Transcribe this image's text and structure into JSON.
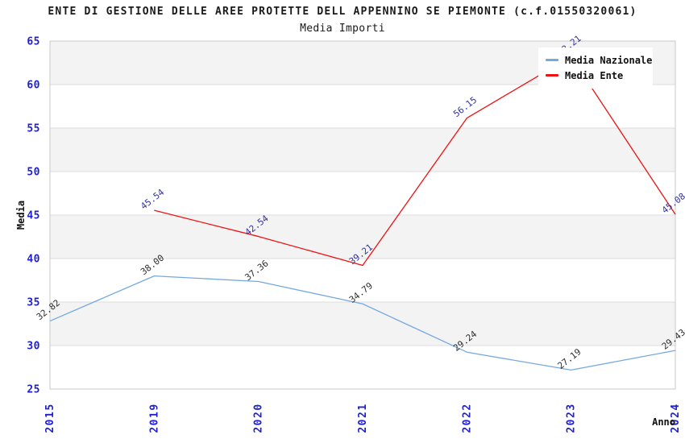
{
  "chart_data": {
    "type": "line",
    "title": "ENTE DI GESTIONE DELLE AREE PROTETTE DELL APPENNINO SE PIEMONTE (c.f.01550320061)",
    "subtitle": "Media Importi",
    "xlabel": "Anno",
    "ylabel": "Media",
    "ylim": [
      25,
      65
    ],
    "yticks": [
      25,
      30,
      35,
      40,
      45,
      50,
      55,
      60,
      65
    ],
    "categories": [
      "2015",
      "2019",
      "2020",
      "2021",
      "2022",
      "2023",
      "2024"
    ],
    "grid": "horizontal gridlines every 5 units with alternating light-gray bands",
    "legend_position": "top-right inside plot",
    "value_label_decimals": 2,
    "series": [
      {
        "name": "Media Nazionale",
        "color": "#74A9E0",
        "label_color": "#2E2E2E",
        "values": [
          32.82,
          38.0,
          37.36,
          34.79,
          29.24,
          27.19,
          29.43
        ]
      },
      {
        "name": "Media Ente",
        "color": "#EE1111",
        "label_color": "#3333A2",
        "values": [
          null,
          45.54,
          42.54,
          39.21,
          56.15,
          63.21,
          45.08
        ]
      }
    ]
  },
  "colors": {
    "tick_label": "#2020CC",
    "axis_label": "#111111",
    "band": "#F3F3F3",
    "gridline": "#DEDEDE",
    "plot_border": "#C8C8C8",
    "background": "#FFFFFF"
  }
}
